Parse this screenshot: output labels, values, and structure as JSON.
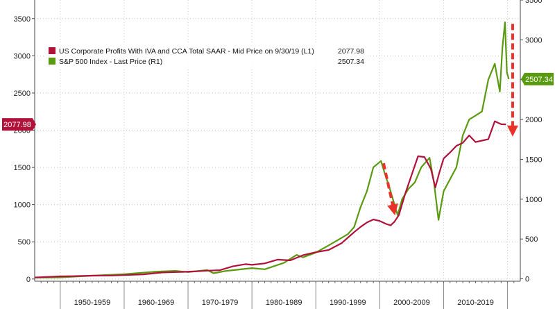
{
  "chart_data": {
    "type": "line",
    "left_axis": {
      "ticks": [
        0,
        500,
        1000,
        1500,
        2000,
        2500,
        3000,
        3500
      ],
      "ylim": [
        -30,
        3750
      ]
    },
    "right_axis": {
      "ticks": [
        0,
        500,
        1000,
        1500,
        2000,
        2500,
        3000,
        3500
      ],
      "ylim": [
        -30,
        3500
      ]
    },
    "xlim": [
      1946,
      2022
    ],
    "x_period_labels": [
      "1950-1959",
      "1960-1969",
      "1970-1979",
      "1980-1989",
      "1990-1999",
      "2000-2009",
      "2010-2019"
    ],
    "x_period_centers": [
      1955,
      1965,
      1975,
      1985,
      1995,
      2005,
      2015
    ],
    "grid": true,
    "legend_position": "top-left",
    "series": [
      {
        "name": "US Corporate Profits With IVA and CCA Total SAAR - Mid Price on 9/30/19 (L1)",
        "last_value": "2077.98",
        "axis": "left",
        "color": "#b0123a",
        "x": [
          1946,
          1948,
          1950,
          1952,
          1955,
          1958,
          1960,
          1963,
          1966,
          1969,
          1971,
          1973,
          1975,
          1977,
          1979,
          1980,
          1982,
          1984,
          1986,
          1988,
          1990,
          1992,
          1994,
          1996,
          1997,
          1998,
          1999,
          2000,
          2001,
          2001.7,
          2002.3,
          2003,
          2004,
          2005,
          2006,
          2007,
          2008,
          2008.7,
          2009.3,
          2010,
          2011,
          2012,
          2013,
          2014,
          2015,
          2016,
          2017,
          2018,
          2019,
          2019.75
        ],
        "y": [
          20,
          28,
          35,
          38,
          45,
          47,
          52,
          62,
          88,
          95,
          102,
          112,
          118,
          170,
          200,
          190,
          210,
          260,
          250,
          320,
          360,
          390,
          480,
          630,
          700,
          760,
          800,
          780,
          740,
          720,
          770,
          860,
          1150,
          1400,
          1650,
          1640,
          1480,
          1230,
          1420,
          1620,
          1700,
          1790,
          1830,
          1930,
          1840,
          1860,
          1880,
          2120,
          2080,
          2077.98
        ]
      },
      {
        "name": "S&P 500 Index - Last Price (R1)",
        "last_value": "2507.34",
        "axis": "right",
        "color": "#5a9a10",
        "x": [
          1946,
          1950,
          1955,
          1960,
          1965,
          1968,
          1970,
          1973,
          1974,
          1976,
          1980,
          1982,
          1985,
          1987,
          1988,
          1990,
          1992,
          1995,
          1996,
          1997,
          1998,
          1999,
          2000.2,
          2000.8,
          2001.5,
          2002.8,
          2003.5,
          2004.5,
          2005.5,
          2006.5,
          2007.8,
          2008.5,
          2009.2,
          2010,
          2011,
          2012,
          2013,
          2014,
          2015,
          2016,
          2017,
          2018,
          2018.8,
          2019.2,
          2019.6,
          2019.9,
          2020.2
        ],
        "y": [
          15,
          18,
          40,
          58,
          90,
          100,
          85,
          110,
          70,
          100,
          135,
          120,
          200,
          300,
          270,
          330,
          420,
          560,
          650,
          900,
          1100,
          1400,
          1480,
          1320,
          1150,
          800,
          1000,
          1130,
          1210,
          1400,
          1520,
          1200,
          740,
          1100,
          1250,
          1400,
          1800,
          2000,
          2050,
          2100,
          2500,
          2700,
          2350,
          2900,
          3220,
          2590,
          2507.34
        ]
      }
    ]
  }
}
